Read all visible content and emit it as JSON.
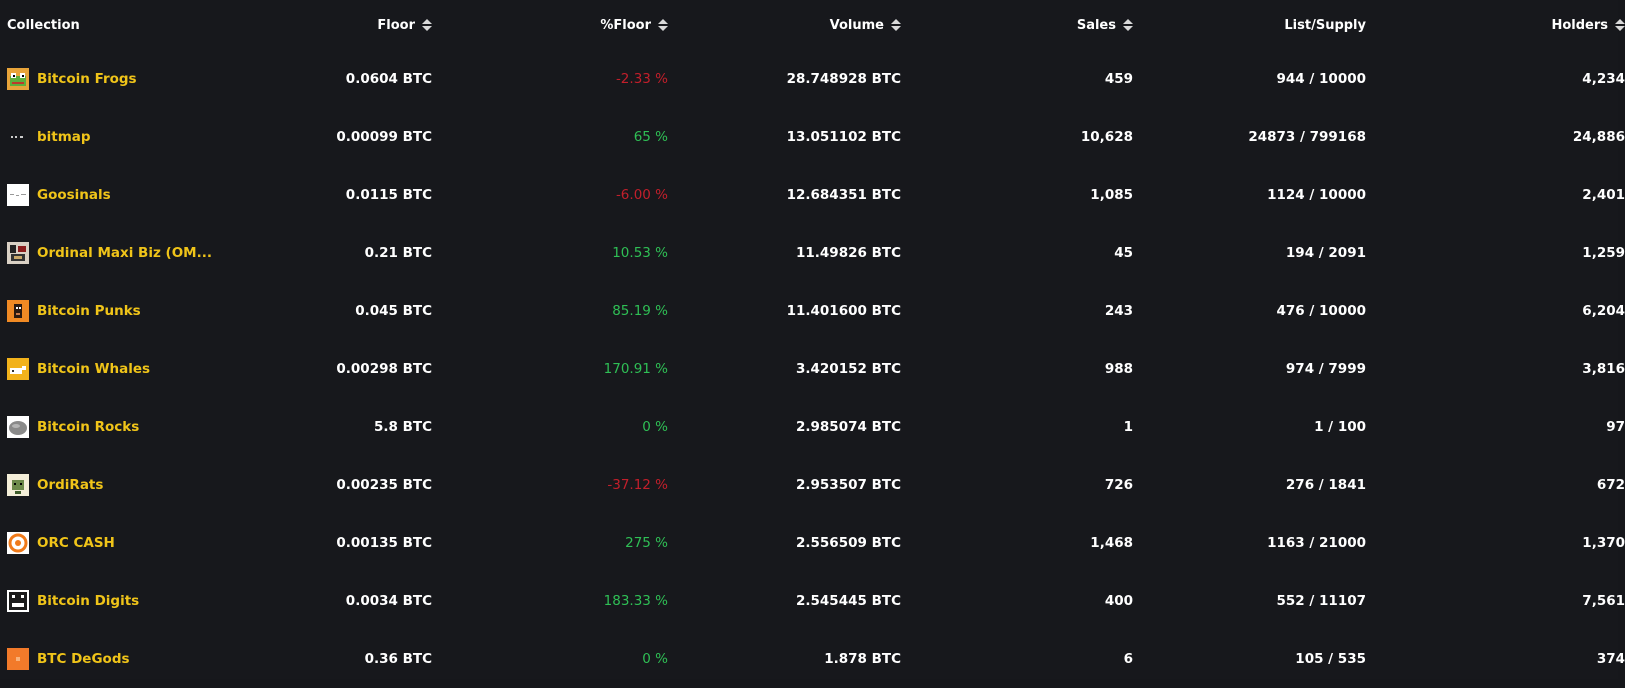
{
  "table": {
    "headers": {
      "collection": "Collection",
      "floor": "Floor",
      "pct_floor": "%Floor",
      "volume": "Volume",
      "sales": "Sales",
      "list_supply": "List/Supply",
      "holders": "Holders"
    },
    "rows": [
      {
        "name": "Bitcoin Frogs",
        "icon": "frog-icon",
        "floor": "0.0604 BTC",
        "pct_floor": "-2.33 %",
        "pct_sign": "neg",
        "volume": "28.748928 BTC",
        "sales": "459",
        "list_supply": "944 / 10000",
        "holders": "4,234"
      },
      {
        "name": "bitmap",
        "icon": "bitmap-icon",
        "floor": "0.00099 BTC",
        "pct_floor": "65 %",
        "pct_sign": "pos",
        "volume": "13.051102 BTC",
        "sales": "10,628",
        "list_supply": "24873 / 799168",
        "holders": "24,886"
      },
      {
        "name": "Goosinals",
        "icon": "goose-icon",
        "floor": "0.0115 BTC",
        "pct_floor": "-6.00 %",
        "pct_sign": "neg",
        "volume": "12.684351 BTC",
        "sales": "1,085",
        "list_supply": "1124 / 10000",
        "holders": "2,401"
      },
      {
        "name": "Ordinal Maxi Biz (OM...",
        "icon": "omb-icon",
        "floor": "0.21 BTC",
        "pct_floor": "10.53 %",
        "pct_sign": "pos",
        "volume": "11.49826 BTC",
        "sales": "45",
        "list_supply": "194 / 2091",
        "holders": "1,259"
      },
      {
        "name": "Bitcoin Punks",
        "icon": "punk-icon",
        "floor": "0.045 BTC",
        "pct_floor": "85.19 %",
        "pct_sign": "pos",
        "volume": "11.401600 BTC",
        "sales": "243",
        "list_supply": "476 / 10000",
        "holders": "6,204"
      },
      {
        "name": "Bitcoin Whales",
        "icon": "whale-icon",
        "floor": "0.00298 BTC",
        "pct_floor": "170.91 %",
        "pct_sign": "pos",
        "volume": "3.420152 BTC",
        "sales": "988",
        "list_supply": "974 / 7999",
        "holders": "3,816"
      },
      {
        "name": "Bitcoin Rocks",
        "icon": "rock-icon",
        "floor": "5.8 BTC",
        "pct_floor": "0 %",
        "pct_sign": "pos",
        "volume": "2.985074 BTC",
        "sales": "1",
        "list_supply": "1 / 100",
        "holders": "97"
      },
      {
        "name": "OrdiRats",
        "icon": "rat-icon",
        "floor": "0.00235 BTC",
        "pct_floor": "-37.12 %",
        "pct_sign": "neg",
        "volume": "2.953507 BTC",
        "sales": "726",
        "list_supply": "276 / 1841",
        "holders": "672"
      },
      {
        "name": "ORC CASH",
        "icon": "orc-cash-icon",
        "floor": "0.00135 BTC",
        "pct_floor": "275 %",
        "pct_sign": "pos",
        "volume": "2.556509 BTC",
        "sales": "1,468",
        "list_supply": "1163 / 21000",
        "holders": "1,370"
      },
      {
        "name": "Bitcoin Digits",
        "icon": "digits-icon",
        "floor": "0.0034 BTC",
        "pct_floor": "183.33 %",
        "pct_sign": "pos",
        "volume": "2.545445 BTC",
        "sales": "400",
        "list_supply": "552 / 11107",
        "holders": "7,561"
      },
      {
        "name": "BTC DeGods",
        "icon": "degods-icon",
        "floor": "0.36 BTC",
        "pct_floor": "0 %",
        "pct_sign": "pos",
        "volume": "1.878 BTC",
        "sales": "6",
        "list_supply": "105 / 535",
        "holders": "374"
      }
    ]
  },
  "colors": {
    "background": "#17181c",
    "collection_name": "#f0c419",
    "positive": "#2fbf55",
    "negative": "#c21f2b",
    "text": "#ffffff"
  }
}
